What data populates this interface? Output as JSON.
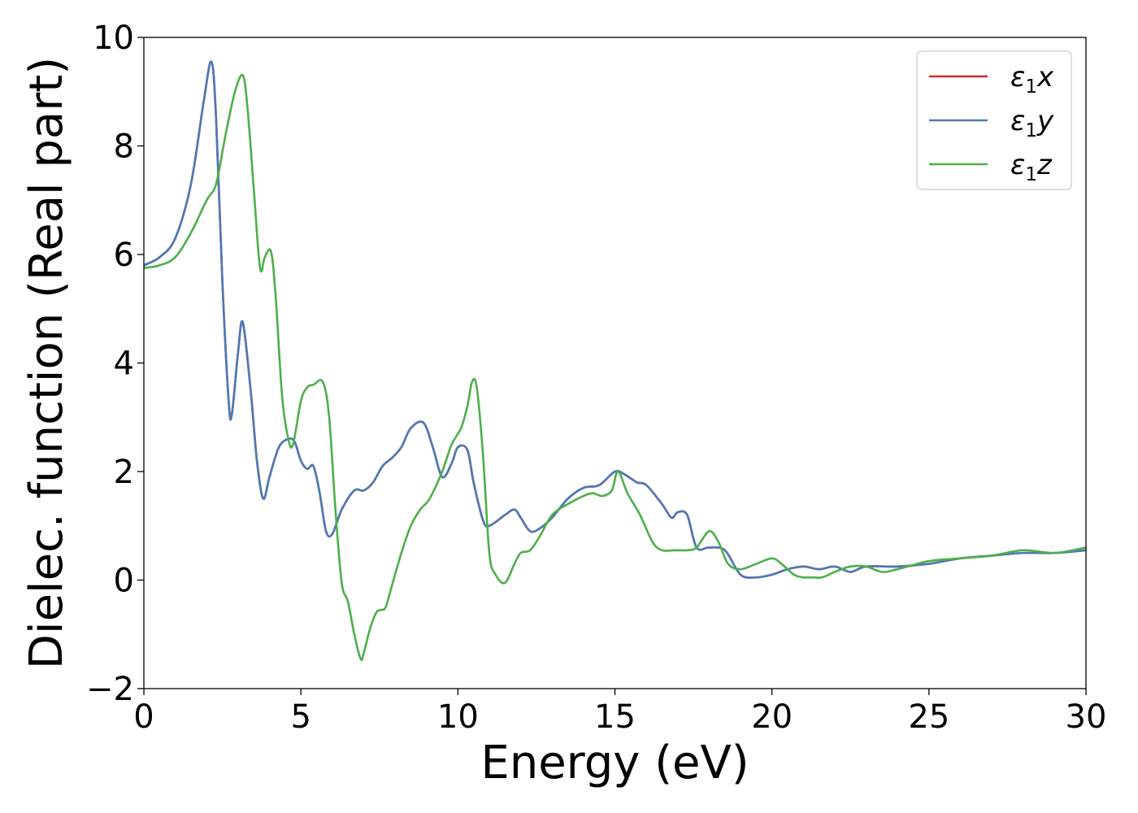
{
  "chart_data": {
    "type": "line",
    "title": "",
    "xlabel": "Energy (eV)",
    "ylabel": "Dielec. function (Real part)",
    "xlim": [
      0,
      30
    ],
    "ylim": [
      -2,
      10
    ],
    "xticks": [
      0,
      5,
      10,
      15,
      20,
      25,
      30
    ],
    "xtick_labels": [
      "0",
      "5",
      "10",
      "15",
      "20",
      "25",
      "30"
    ],
    "yticks": [
      -2,
      0,
      2,
      4,
      6,
      8,
      10
    ],
    "ytick_labels": [
      "−2",
      "0",
      "2",
      "4",
      "6",
      "8",
      "10"
    ],
    "grid": false,
    "legend_position": "top-right",
    "series": [
      {
        "name": "ε1x",
        "legend_base": "ε",
        "legend_sub": "1",
        "legend_var": "x",
        "color": "#d62728",
        "x": [
          0,
          0.5,
          1,
          1.5,
          1.9,
          2.15,
          2.3,
          2.5,
          2.7,
          2.8,
          3.0,
          3.15,
          3.4,
          3.6,
          3.8,
          4.0,
          4.3,
          4.6,
          4.8,
          5.0,
          5.2,
          5.4,
          5.6,
          5.8,
          6.0,
          6.3,
          6.7,
          7.0,
          7.3,
          7.6,
          7.9,
          8.2,
          8.5,
          8.9,
          9.2,
          9.5,
          9.8,
          10.0,
          10.3,
          10.5,
          10.8,
          11.0,
          11.5,
          11.8,
          12.0,
          12.3,
          12.6,
          13.0,
          13.5,
          14.0,
          14.5,
          15.0,
          15.3,
          15.7,
          16.0,
          16.5,
          16.8,
          17.0,
          17.3,
          17.6,
          18.0,
          18.5,
          19.0,
          19.5,
          20.0,
          20.5,
          21.0,
          21.5,
          22.0,
          22.5,
          23.0,
          24.0,
          25.0,
          26.0,
          27.0,
          28.0,
          29.0,
          30.0
        ],
        "y": [
          5.8,
          5.95,
          6.3,
          7.3,
          8.8,
          9.55,
          8.5,
          5.5,
          3.3,
          3.05,
          4.2,
          4.75,
          3.5,
          2.2,
          1.5,
          1.9,
          2.45,
          2.6,
          2.55,
          2.2,
          2.05,
          2.1,
          1.6,
          0.9,
          0.85,
          1.3,
          1.65,
          1.65,
          1.8,
          2.1,
          2.25,
          2.45,
          2.8,
          2.9,
          2.45,
          1.9,
          2.15,
          2.45,
          2.4,
          1.8,
          1.1,
          1.0,
          1.2,
          1.3,
          1.15,
          0.9,
          0.95,
          1.15,
          1.5,
          1.7,
          1.75,
          2.0,
          1.95,
          1.8,
          1.75,
          1.4,
          1.15,
          1.25,
          1.2,
          0.6,
          0.6,
          0.55,
          0.1,
          0.05,
          0.1,
          0.2,
          0.25,
          0.2,
          0.25,
          0.15,
          0.25,
          0.25,
          0.3,
          0.4,
          0.45,
          0.5,
          0.5,
          0.55
        ]
      },
      {
        "name": "ε1y",
        "legend_base": "ε",
        "legend_sub": "1",
        "legend_var": "y",
        "color": "#4a7bb5",
        "x": [
          0,
          0.5,
          1,
          1.5,
          1.9,
          2.15,
          2.3,
          2.5,
          2.7,
          2.8,
          3.0,
          3.15,
          3.4,
          3.6,
          3.8,
          4.0,
          4.3,
          4.6,
          4.8,
          5.0,
          5.2,
          5.4,
          5.6,
          5.8,
          6.0,
          6.3,
          6.7,
          7.0,
          7.3,
          7.6,
          7.9,
          8.2,
          8.5,
          8.9,
          9.2,
          9.5,
          9.8,
          10.0,
          10.3,
          10.5,
          10.8,
          11.0,
          11.5,
          11.8,
          12.0,
          12.3,
          12.6,
          13.0,
          13.5,
          14.0,
          14.5,
          15.0,
          15.3,
          15.7,
          16.0,
          16.5,
          16.8,
          17.0,
          17.3,
          17.6,
          18.0,
          18.5,
          19.0,
          19.5,
          20.0,
          20.5,
          21.0,
          21.5,
          22.0,
          22.5,
          23.0,
          24.0,
          25.0,
          26.0,
          27.0,
          28.0,
          29.0,
          30.0
        ],
        "y": [
          5.8,
          5.95,
          6.3,
          7.3,
          8.8,
          9.55,
          8.5,
          5.5,
          3.3,
          3.05,
          4.2,
          4.75,
          3.5,
          2.2,
          1.5,
          1.9,
          2.45,
          2.6,
          2.55,
          2.2,
          2.05,
          2.1,
          1.6,
          0.9,
          0.85,
          1.3,
          1.65,
          1.65,
          1.8,
          2.1,
          2.25,
          2.45,
          2.8,
          2.9,
          2.45,
          1.9,
          2.15,
          2.45,
          2.4,
          1.8,
          1.1,
          1.0,
          1.2,
          1.3,
          1.15,
          0.9,
          0.95,
          1.15,
          1.5,
          1.7,
          1.75,
          2.0,
          1.95,
          1.8,
          1.75,
          1.4,
          1.15,
          1.25,
          1.2,
          0.6,
          0.6,
          0.55,
          0.1,
          0.05,
          0.1,
          0.2,
          0.25,
          0.2,
          0.25,
          0.15,
          0.25,
          0.25,
          0.3,
          0.4,
          0.45,
          0.5,
          0.5,
          0.55
        ]
      },
      {
        "name": "ε1z",
        "legend_base": "ε",
        "legend_sub": "1",
        "legend_var": "z",
        "color": "#4daf4a",
        "x": [
          0,
          0.5,
          1,
          1.5,
          2.0,
          2.3,
          2.6,
          2.9,
          3.15,
          3.3,
          3.5,
          3.7,
          3.85,
          4.05,
          4.2,
          4.4,
          4.6,
          4.75,
          5.0,
          5.2,
          5.4,
          5.7,
          5.9,
          6.1,
          6.3,
          6.5,
          6.7,
          6.9,
          7.0,
          7.2,
          7.4,
          7.55,
          7.7,
          7.9,
          8.2,
          8.5,
          8.8,
          9.1,
          9.5,
          9.8,
          10.1,
          10.3,
          10.45,
          10.6,
          10.8,
          11.0,
          11.2,
          11.5,
          11.8,
          12.0,
          12.3,
          12.6,
          13.0,
          13.5,
          14.0,
          14.3,
          14.6,
          14.9,
          15.1,
          15.4,
          15.8,
          16.2,
          16.5,
          16.9,
          17.3,
          17.6,
          18.0,
          18.3,
          18.6,
          19.0,
          19.5,
          20.0,
          20.3,
          20.7,
          21.0,
          21.3,
          21.6,
          22.0,
          22.5,
          23.0,
          23.5,
          24.0,
          25.0,
          26.0,
          27.0,
          28.0,
          29.0,
          30.0
        ],
        "y": [
          5.75,
          5.8,
          5.95,
          6.4,
          7.0,
          7.3,
          8.2,
          9.0,
          9.3,
          8.7,
          7.2,
          5.75,
          5.95,
          6.05,
          5.2,
          3.4,
          2.6,
          2.5,
          3.3,
          3.55,
          3.6,
          3.65,
          3.0,
          1.3,
          -0.05,
          -0.4,
          -1.0,
          -1.45,
          -1.35,
          -0.9,
          -0.6,
          -0.55,
          -0.5,
          -0.1,
          0.5,
          1.0,
          1.3,
          1.5,
          2.0,
          2.5,
          2.8,
          3.2,
          3.65,
          3.55,
          2.3,
          0.5,
          0.1,
          -0.05,
          0.3,
          0.5,
          0.55,
          0.8,
          1.2,
          1.4,
          1.55,
          1.6,
          1.55,
          1.65,
          2.0,
          1.6,
          1.2,
          0.7,
          0.55,
          0.55,
          0.55,
          0.6,
          0.9,
          0.7,
          0.3,
          0.2,
          0.3,
          0.4,
          0.3,
          0.1,
          0.05,
          0.05,
          0.05,
          0.15,
          0.25,
          0.25,
          0.15,
          0.2,
          0.35,
          0.4,
          0.45,
          0.55,
          0.5,
          0.6
        ]
      }
    ]
  }
}
